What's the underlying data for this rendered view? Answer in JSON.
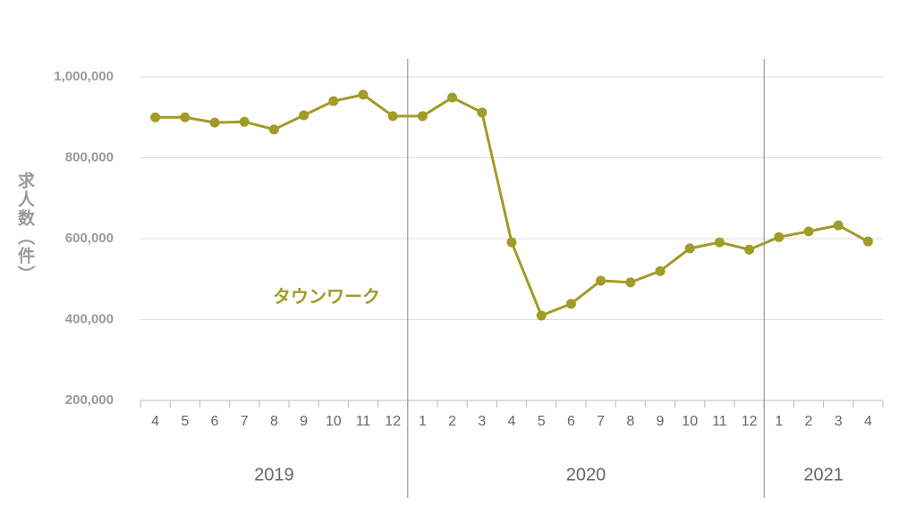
{
  "chart_data": {
    "type": "line",
    "y_label": "求人数（件）",
    "year_groups": [
      {
        "year": "2019",
        "months": [
          "4",
          "5",
          "6",
          "7",
          "8",
          "9",
          "10",
          "11",
          "12"
        ]
      },
      {
        "year": "2020",
        "months": [
          "1",
          "2",
          "3",
          "4",
          "5",
          "6",
          "7",
          "8",
          "9",
          "10",
          "11",
          "12"
        ]
      },
      {
        "year": "2021",
        "months": [
          "1",
          "2",
          "3",
          "4"
        ]
      }
    ],
    "series": [
      {
        "name": "タウンワーク",
        "color": "#a19b27",
        "values": [
          900000,
          900000,
          887000,
          889000,
          870000,
          905000,
          940000,
          956000,
          903000,
          903000,
          949000,
          912000,
          591000,
          410000,
          439000,
          496000,
          492000,
          520000,
          576000,
          591000,
          573000,
          604000,
          618000,
          633000,
          593000
        ]
      }
    ],
    "ylim": [
      200000,
      1000000
    ],
    "yticks": [
      {
        "value": 200000,
        "label": "200,000"
      },
      {
        "value": 400000,
        "label": "400,000"
      },
      {
        "value": 600000,
        "label": "600,000"
      },
      {
        "value": 800000,
        "label": "800,000"
      },
      {
        "value": 1000000,
        "label": "1,000,000"
      }
    ],
    "grid": true
  }
}
